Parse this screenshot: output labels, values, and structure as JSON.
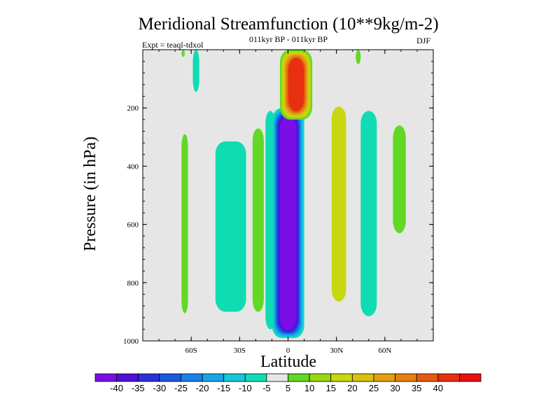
{
  "chart_data": {
    "type": "filled-contour",
    "title": "Meridional Streamfunction (10**9kg/m-2)",
    "subtitle": "011kyr BP - 011kyr BP",
    "left_string": "Expt = teaql-tdxol",
    "right_string": "DJF",
    "xlabel": "Latitude",
    "ylabel": "Pressure (in hPa)",
    "xlim": [
      -90,
      90
    ],
    "ylim": [
      0,
      1000
    ],
    "y_reversed": true,
    "x_ticks": [
      {
        "value": -60,
        "label": "60S"
      },
      {
        "value": -30,
        "label": "30S"
      },
      {
        "value": 0,
        "label": "0"
      },
      {
        "value": 30,
        "label": "30N"
      },
      {
        "value": 60,
        "label": "60N"
      }
    ],
    "y_ticks": [
      {
        "value": 200,
        "label": "200"
      },
      {
        "value": 400,
        "label": "400"
      },
      {
        "value": 600,
        "label": "600"
      },
      {
        "value": 800,
        "label": "800"
      },
      {
        "value": 1000,
        "label": "1000"
      }
    ],
    "background_color": "#e6e6e6",
    "colorbar": {
      "colors": [
        "#7b0ee6",
        "#5010d8",
        "#2c2ed8",
        "#1c58e0",
        "#1a80e8",
        "#16a6e8",
        "#14c8d8",
        "#10dcb4",
        "#e6e6e6",
        "#62d826",
        "#98d810",
        "#c8d810",
        "#dcc010",
        "#e0a010",
        "#e68010",
        "#e65a10",
        "#e63010",
        "#e61010"
      ],
      "labels": [
        "-40",
        "-35",
        "-30",
        "-25",
        "-20",
        "-15",
        "-10",
        "-5",
        "5",
        "10",
        "15",
        "20",
        "25",
        "30",
        "35",
        "40"
      ]
    },
    "regions": [
      {
        "name": "sh-outer-5-band",
        "level": 5,
        "lat_range": [
          -66,
          -62
        ],
        "p_range": [
          290,
          905
        ]
      },
      {
        "name": "sh-5-thin-band",
        "level": 5,
        "lat_range": [
          -66,
          -64
        ],
        "p_range": [
          0,
          25
        ]
      },
      {
        "name": "sh-minus5-top",
        "level": -5,
        "lat_range": [
          -59,
          -55
        ],
        "p_range": [
          0,
          145
        ]
      },
      {
        "name": "sh-minus5-wide",
        "level": -5,
        "lat_range": [
          -45,
          -26
        ],
        "p_range": [
          315,
          900
        ]
      },
      {
        "name": "sh-5-band",
        "level": 5,
        "lat_range": [
          -22,
          -15
        ],
        "p_range": [
          270,
          900
        ]
      },
      {
        "name": "sh-minus5-inner",
        "level": -5,
        "lat_range": [
          -14,
          -8
        ],
        "p_range": [
          210,
          960
        ]
      },
      {
        "name": "eq-negative-cell",
        "level": -40,
        "lat_range": [
          -10,
          10
        ],
        "p_range": [
          200,
          990
        ],
        "min": -40
      },
      {
        "name": "eq-positive-cell",
        "level": 40,
        "lat_range": [
          -5,
          15
        ],
        "p_range": [
          0,
          240
        ],
        "max": 40
      },
      {
        "name": "nh-15-band",
        "level": 15,
        "lat_range": [
          27,
          36
        ],
        "p_range": [
          195,
          865
        ]
      },
      {
        "name": "nh-minus5-band",
        "level": -5,
        "lat_range": [
          45,
          55
        ],
        "p_range": [
          210,
          915
        ]
      },
      {
        "name": "nh-5-top",
        "level": 5,
        "lat_range": [
          42,
          45
        ],
        "p_range": [
          0,
          50
        ]
      },
      {
        "name": "nh-5-outer",
        "level": 5,
        "lat_range": [
          65,
          73
        ],
        "p_range": [
          260,
          630
        ]
      }
    ]
  }
}
